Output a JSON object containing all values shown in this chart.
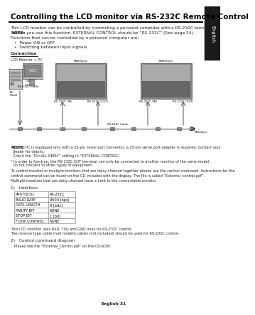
{
  "title": "Controlling the LCD monitor via RS-232C Remote Control",
  "tab_label": "English",
  "body_text_1": "This LCD monitor can be controlled by connecting a personal computer with a RS-232C terminal.",
  "note_1_label": "NOTE:",
  "note_1_text": "  When you use this function, EXTERNAL CONTROL should be “RS-232C” (See page 24).",
  "functions_intro": "Functions that can be controlled by a personal computer are:",
  "bullet_1": "Power ON or OFF",
  "bullet_2": "Switching between input signals",
  "connection_label": "Connection",
  "connection_sub": "LCD Monitor + PC",
  "note_2_label": "NOTE:",
  "note_2_text_1": "  If your PC is equipped only with a 25-pin serial port connector, a 25-pin serial port adapter is required. Contact your",
  "note_2_text_2": "  dealer for details.",
  "note_2_text_3": "  Check the “ID=ALL REPLY” setting in “EXTERNAL CONTROL”.",
  "footnote_1": "* In order to function, the RS-232C OUT terminal can only be connected to another monitor of the same model.",
  "footnote_2": "  Do not connect to other types of equipment.",
  "para_1a": "To control monitor or multiple monitors that are daisy-chained together please use the control command. Instructions for the",
  "para_1b": "control command can be found on the CD included with the display. The file is called “External_control.pdf”.",
  "para_2": "Multiple monitors that are daisy-chained have a limit to the connectable monitor.",
  "section_1": "1)   Interface",
  "table_rows": [
    [
      "PROTOCOL",
      "RS-232C"
    ],
    [
      "BAUD RATE",
      "9600 [bps]"
    ],
    [
      "DATA LENGTH",
      "8 [bits]"
    ],
    [
      "PARITY BIT",
      "NONE"
    ],
    [
      "STOP BIT",
      "1 [bit]"
    ],
    [
      "FLOW CONTROL",
      "NONE"
    ]
  ],
  "table_note_1": "This LCD monitor uses RXD, TXD and GND lines for RS-232C control.",
  "table_note_2": "The reverse type cable (null modem cable) (not included) should be used for RS-232C control.",
  "section_2": "2)   Control command diagram",
  "section_2_text": "Please see file “External_Control.pdf” on the CD-ROM.",
  "footer": "English-31",
  "bg_color": "#ffffff",
  "title_color": "#ffffff",
  "tab_bg": "#1a1a1a",
  "tab_color": "#ffffff",
  "text_color": "#222222",
  "diagram_cable_label_1": "RS-232C Cable",
  "diagram_cable_label_2": "RS-232C Cable",
  "label_pc_out": "PC\n(Out)",
  "label_rs232_in_1": "RS-232C (IN)",
  "label_rs232_out_1": "RS-232C (OUT)",
  "label_rs232_in_2": "RS-232C (IN)",
  "label_rs232_out_2": "RS-232C (OUT)",
  "label_multisync_1": "MultiSync",
  "label_multisync_2": "MultiSync",
  "label_multisync_3": "MultiSync",
  "label_out": "OUT",
  "label_in": "IN"
}
